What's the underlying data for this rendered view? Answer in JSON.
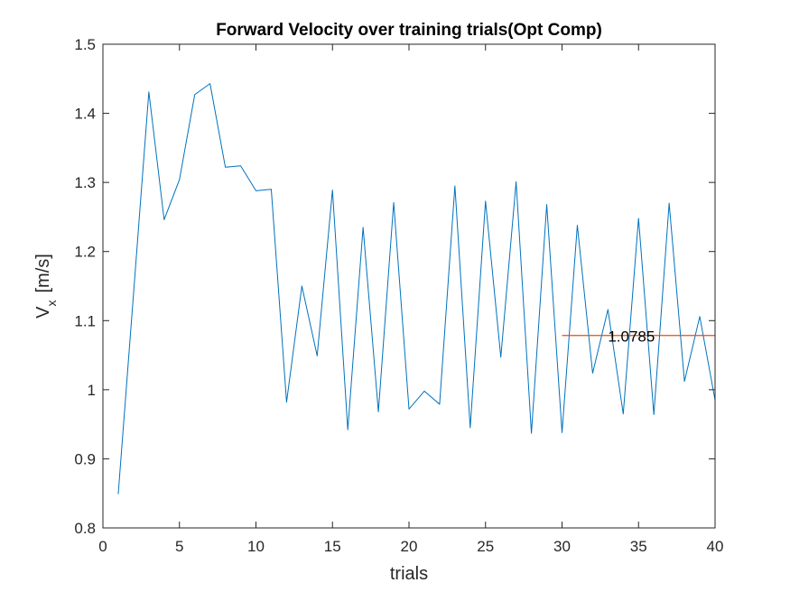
{
  "chart_data": {
    "type": "line",
    "title": "Forward Velocity over training trials(Opt Comp)",
    "xlabel": "trials",
    "ylabel_main": "V",
    "ylabel_sub": "x",
    "ylabel_unit": "[m/s]",
    "xlim": [
      0,
      40
    ],
    "ylim": [
      0.8,
      1.5
    ],
    "xticks": [
      0,
      5,
      10,
      15,
      20,
      25,
      30,
      35,
      40
    ],
    "xtick_labels": [
      "0",
      "5",
      "10",
      "15",
      "20",
      "25",
      "30",
      "35",
      "40"
    ],
    "yticks": [
      0.8,
      0.9,
      1.0,
      1.1,
      1.2,
      1.3,
      1.4,
      1.5
    ],
    "ytick_labels": [
      "0.8",
      "0.9",
      "1",
      "1.1",
      "1.2",
      "1.3",
      "1.4",
      "1.5"
    ],
    "grid": false,
    "series": [
      {
        "color": "#0072BD",
        "x": [
          1,
          2,
          3,
          4,
          5,
          6,
          7,
          8,
          9,
          10,
          11,
          12,
          13,
          14,
          15,
          16,
          17,
          18,
          19,
          20,
          21,
          22,
          23,
          24,
          25,
          26,
          27,
          28,
          29,
          30,
          31,
          32,
          33,
          34,
          35,
          36,
          37,
          38,
          39,
          40
        ],
        "y": [
          0.849,
          1.139,
          1.431,
          1.246,
          1.304,
          1.427,
          1.443,
          1.322,
          1.324,
          1.288,
          1.29,
          0.982,
          1.15,
          1.049,
          1.289,
          0.942,
          1.235,
          0.968,
          1.271,
          0.972,
          0.998,
          0.979,
          1.295,
          0.945,
          1.273,
          1.047,
          1.301,
          0.937,
          1.268,
          0.938,
          1.238,
          1.024,
          1.116,
          0.965,
          1.248,
          0.964,
          1.27,
          1.012,
          1.106,
          0.985
        ]
      }
    ],
    "mean_line": {
      "color": "#D95319",
      "x": [
        30,
        40
      ],
      "y": 1.0785,
      "label": "1.0785",
      "label_x": 33.0
    }
  }
}
